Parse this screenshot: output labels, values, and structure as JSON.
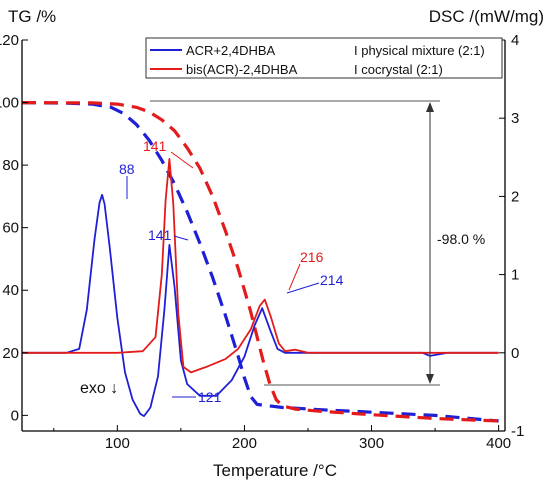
{
  "chart_data": {
    "type": "line",
    "xlabel": "Temperature /°C",
    "ylabel_left": "TG /%",
    "ylabel_right": "DSC /(mW/mg)",
    "xlim": [
      25,
      405
    ],
    "ylim_left": [
      -5,
      120
    ],
    "ylim_right": [
      -1,
      4
    ],
    "x_ticks": [
      "100",
      "200",
      "300",
      "400"
    ],
    "y_ticks_left": [
      "0",
      "20",
      "40",
      "60",
      "80",
      "100",
      "120"
    ],
    "y_ticks_right": [
      "-1",
      "0",
      "1",
      "2",
      "3",
      "4"
    ],
    "colors": {
      "blue": "#1f1fd6",
      "red": "#e31b1b",
      "axis": "#000000"
    },
    "legend": {
      "placement": "top-right",
      "entries": [
        {
          "name": "ACR+2,4DHBA",
          "note": "I physical mixture (2:1)",
          "color": "#1f1fd6"
        },
        {
          "name": "bis(ACR)-2,4DHBA",
          "note": "I cocrystal (2:1)",
          "color": "#e31b1b"
        }
      ]
    },
    "series": [
      {
        "name": "ACR+2,4DHBA",
        "kind": "TG",
        "axis": "left",
        "style": "dashed",
        "color": "#1f1fd6",
        "x": [
          25,
          60,
          80,
          95,
          105,
          115,
          125,
          135,
          145,
          155,
          165,
          175,
          185,
          195,
          200,
          205,
          210,
          230,
          260,
          300,
          350,
          400
        ],
        "y": [
          100,
          99.8,
          99.5,
          98.5,
          96.5,
          93,
          88,
          81.5,
          74,
          65,
          55,
          44,
          32,
          19,
          12,
          6,
          3.5,
          2.5,
          1.8,
          1,
          0,
          -1.8
        ]
      },
      {
        "name": "bis(ACR)-2,4DHBA",
        "kind": "TG",
        "axis": "left",
        "style": "dashed",
        "color": "#e31b1b",
        "x": [
          25,
          80,
          100,
          115,
          125,
          135,
          145,
          155,
          165,
          175,
          185,
          195,
          205,
          215,
          220,
          225,
          230,
          240,
          260,
          300,
          350,
          400
        ],
        "y": [
          100,
          99.9,
          99.5,
          98.5,
          97,
          94.5,
          91,
          85.5,
          79,
          70,
          59,
          47,
          33,
          17,
          10,
          5,
          3,
          2,
          1.3,
          0.2,
          -1,
          -1.8
        ]
      },
      {
        "name": "ACR+2,4DHBA",
        "kind": "DSC",
        "axis": "right",
        "style": "solid",
        "color": "#1f1fd6",
        "x": [
          25,
          60,
          70,
          76,
          82,
          86,
          88,
          90,
          94,
          100,
          106,
          112,
          118,
          121,
          126,
          132,
          137,
          141,
          145,
          150,
          155,
          165,
          178,
          190,
          200,
          208,
          214,
          220,
          226,
          232,
          250,
          300,
          340,
          346,
          360,
          400
        ],
        "y": [
          0,
          0,
          0.05,
          0.55,
          1.45,
          1.92,
          2.02,
          1.9,
          1.35,
          0.45,
          -0.25,
          -0.6,
          -0.78,
          -0.81,
          -0.7,
          -0.3,
          0.55,
          1.38,
          0.85,
          -0.1,
          -0.4,
          -0.55,
          -0.55,
          -0.35,
          -0.05,
          0.35,
          0.57,
          0.3,
          0.05,
          0,
          0,
          0,
          0,
          -0.04,
          0,
          0
        ]
      },
      {
        "name": "bis(ACR)-2,4DHBA",
        "kind": "DSC",
        "axis": "right",
        "style": "solid",
        "color": "#e31b1b",
        "x": [
          25,
          100,
          120,
          130,
          135,
          138,
          141,
          144,
          148,
          152,
          158,
          170,
          185,
          195,
          205,
          212,
          216,
          221,
          227,
          232,
          240,
          250,
          300,
          400
        ],
        "y": [
          0,
          0,
          0.02,
          0.2,
          1.0,
          1.95,
          2.48,
          1.9,
          0.5,
          -0.18,
          -0.25,
          -0.18,
          -0.08,
          0.05,
          0.3,
          0.6,
          0.68,
          0.45,
          0.12,
          0.02,
          0.04,
          0,
          0,
          0
        ]
      }
    ],
    "peak_labels": [
      {
        "text": "88",
        "color": "#1f1fd6"
      },
      {
        "text": "141",
        "color": "#1f1fd6"
      },
      {
        "text": "121",
        "color": "#1f1fd6"
      },
      {
        "text": "214",
        "color": "#1f1fd6"
      },
      {
        "text": "141",
        "color": "#e31b1b"
      },
      {
        "text": "216",
        "color": "#e31b1b"
      }
    ],
    "annotations": {
      "mass_loss": "-98.0 %",
      "exo": "exo ↓"
    }
  }
}
